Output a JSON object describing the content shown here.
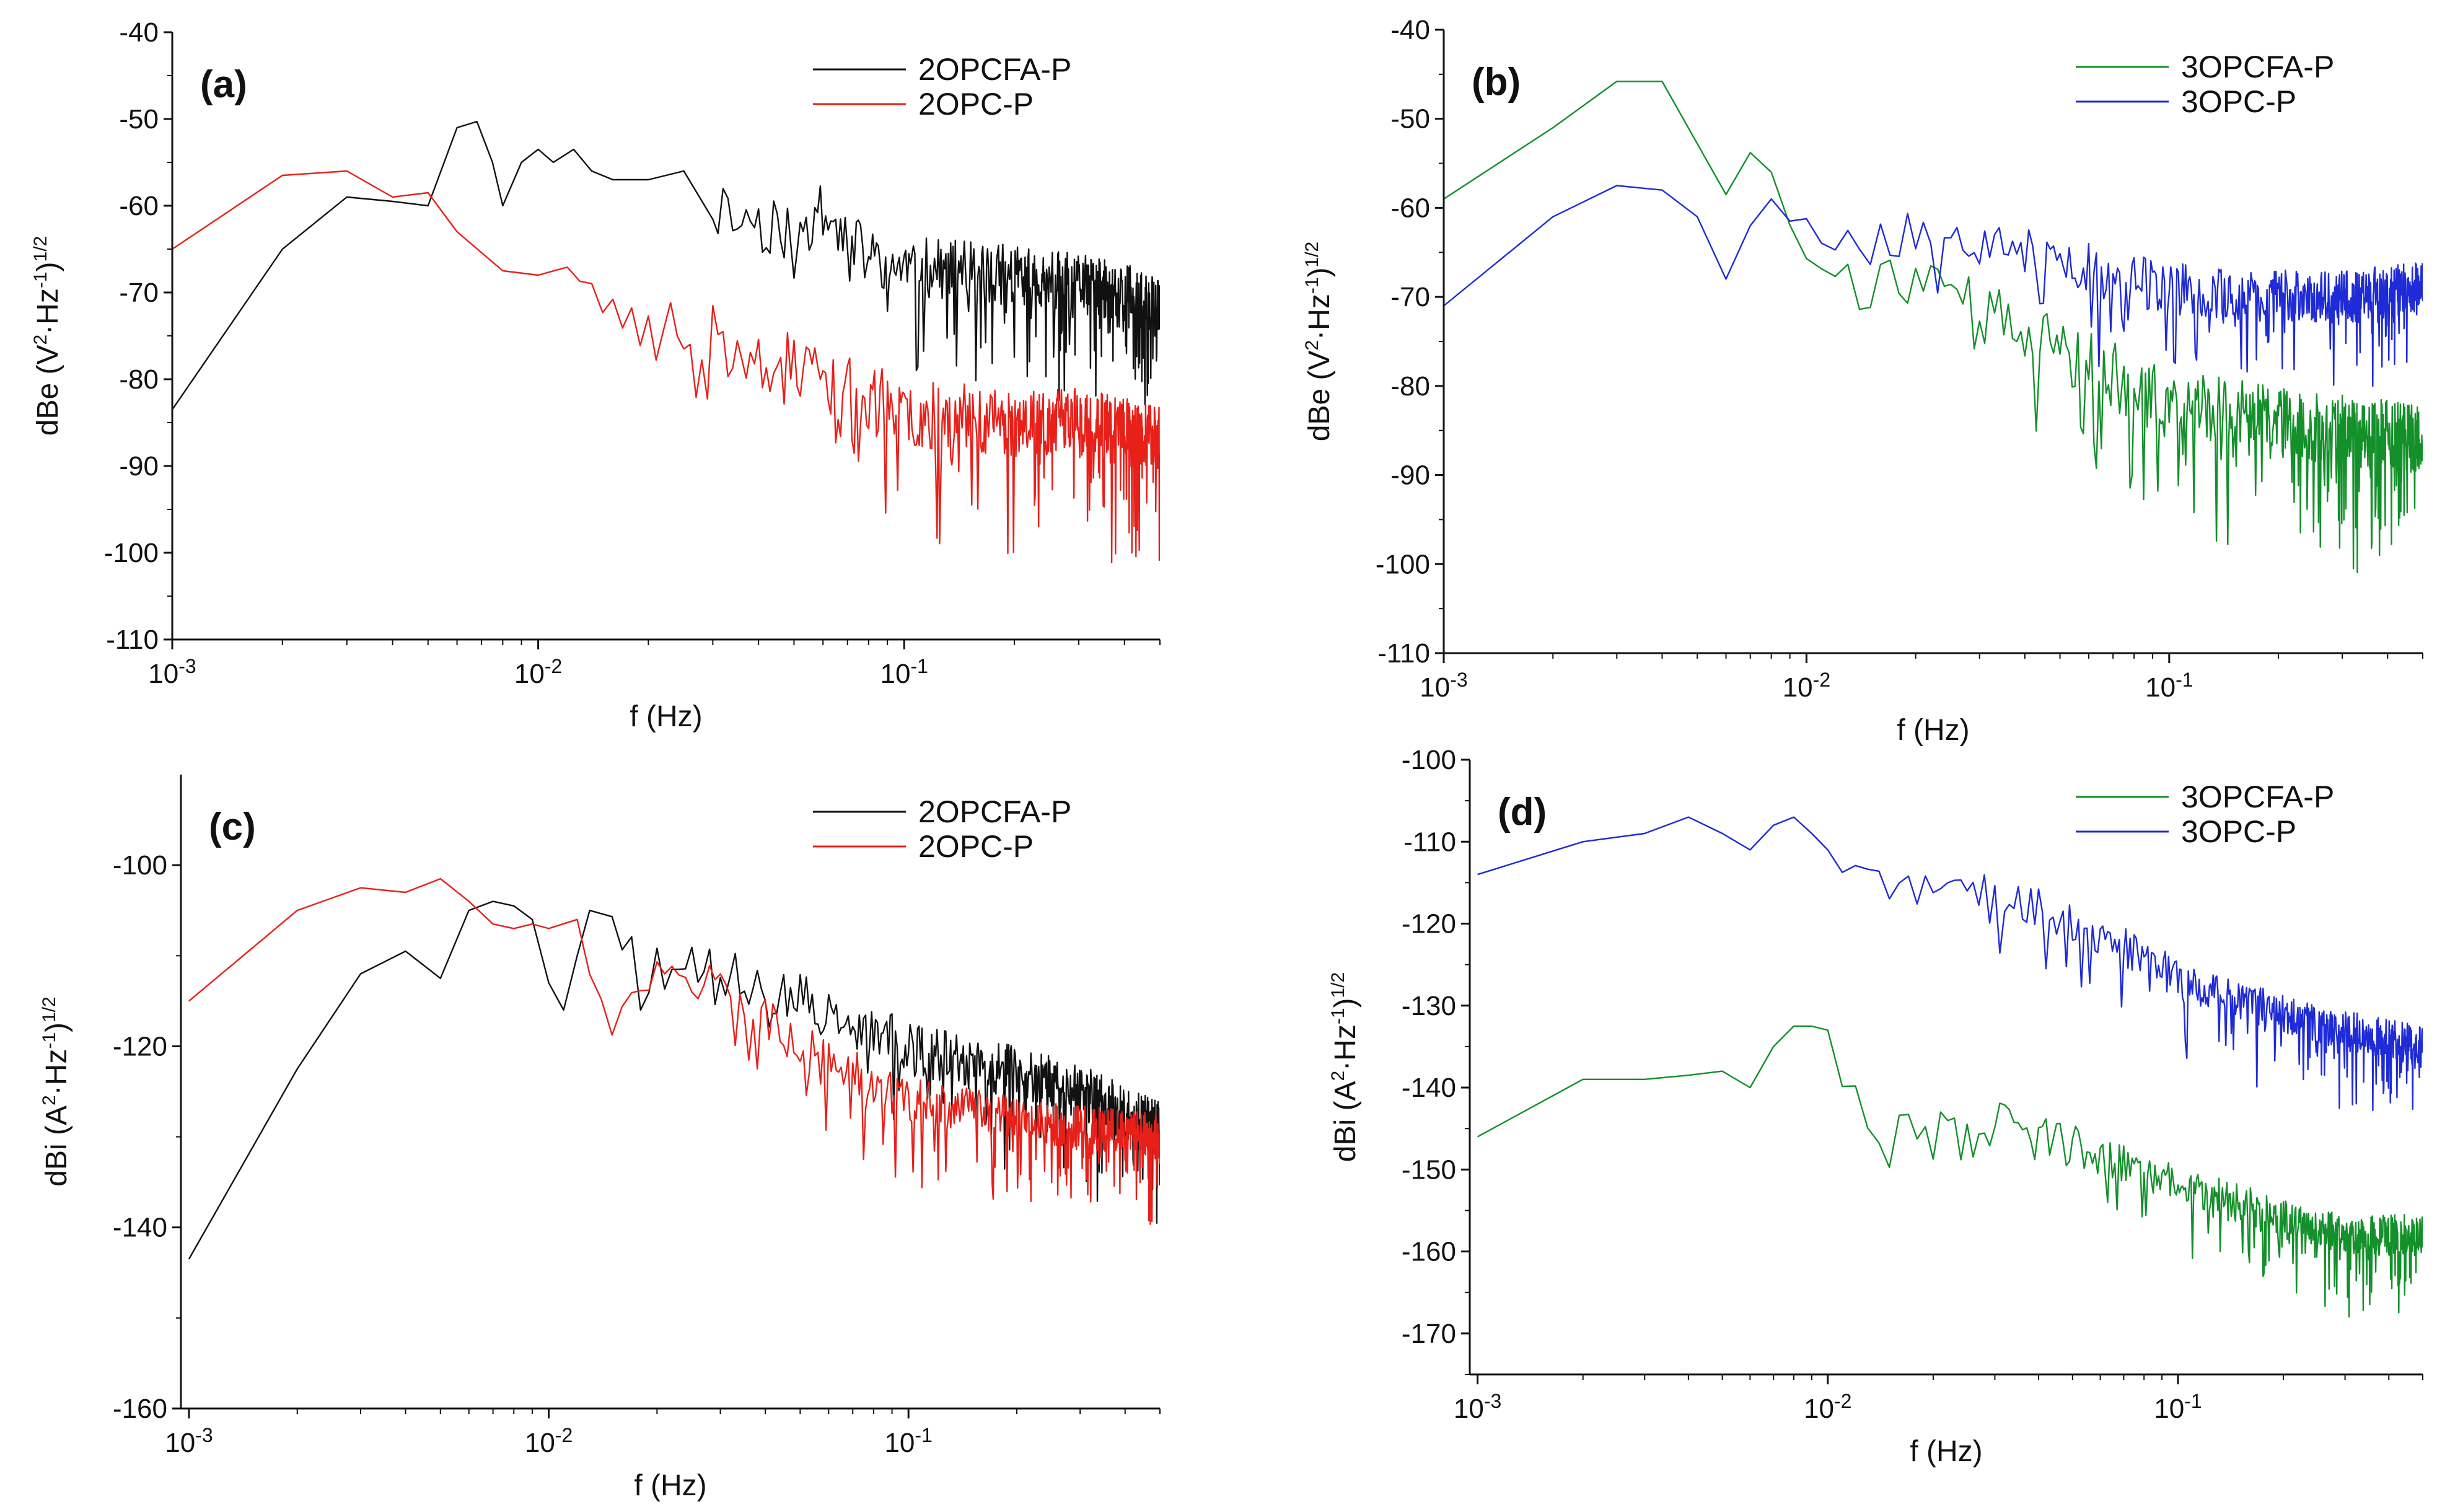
{
  "figure": {
    "panels": [
      {
        "tag": "(a)",
        "xlabel": "f (Hz)",
        "ylabel_main": "dBe (V",
        "ylabel_sup1": "2",
        "ylabel_mid": "·Hz",
        "ylabel_sup2": "-1",
        "ylabel_end": ")",
        "ylabel_sup3": "1/2",
        "legend": [
          "2OPCFA-P",
          "2OPC-P"
        ]
      },
      {
        "tag": "(b)",
        "xlabel": "f (Hz)",
        "ylabel_main": "dBe (V",
        "ylabel_sup1": "2",
        "ylabel_mid": "·Hz",
        "ylabel_sup2": "-1",
        "ylabel_end": ")",
        "ylabel_sup3": "1/2",
        "legend": [
          "3OPCFA-P",
          "3OPC-P"
        ]
      },
      {
        "tag": "(c)",
        "xlabel": "f (Hz)",
        "ylabel_main": "dBi (A",
        "ylabel_sup1": "2",
        "ylabel_mid": "·Hz",
        "ylabel_sup2": "-1",
        "ylabel_end": ")",
        "ylabel_sup3": "1/2",
        "legend": [
          "2OPCFA-P",
          "2OPC-P"
        ]
      },
      {
        "tag": "(d)",
        "xlabel": "f (Hz)",
        "ylabel_main": "dBi (A",
        "ylabel_sup1": "2",
        "ylabel_mid": "·Hz",
        "ylabel_sup2": "-1",
        "ylabel_end": ")",
        "ylabel_sup3": "1/2",
        "legend": [
          "3OPCFA-P",
          "3OPC-P"
        ]
      }
    ]
  },
  "chart_data": [
    {
      "type": "line",
      "title": "(a)",
      "xlabel": "f (Hz)",
      "ylabel": "dBe (V2·Hz-1)1/2",
      "xscale": "log",
      "xlim": [
        0.001,
        0.5
      ],
      "ylim": [
        -110,
        -40
      ],
      "yticks": [
        -40,
        -50,
        -60,
        -70,
        -80,
        -90,
        -100,
        -110
      ],
      "xtick_labels": [
        "10-3",
        "10-2",
        "10-1"
      ],
      "legend_position": "top-right",
      "series": [
        {
          "name": "2OPCFA-P",
          "color": "#111111",
          "noisy_from": 0.03,
          "noise_amp": 7,
          "seed": 11,
          "points": [
            [
              0.001,
              -83.5
            ],
            [
              0.002,
              -65
            ],
            [
              0.003,
              -59
            ],
            [
              0.004,
              -59.5
            ],
            [
              0.005,
              -60
            ],
            [
              0.006,
              -51
            ],
            [
              0.0068,
              -50.3
            ],
            [
              0.0075,
              -55
            ],
            [
              0.008,
              -60
            ],
            [
              0.009,
              -55
            ],
            [
              0.01,
              -53.5
            ],
            [
              0.011,
              -55
            ],
            [
              0.0125,
              -53.5
            ],
            [
              0.014,
              -56
            ],
            [
              0.016,
              -57
            ],
            [
              0.02,
              -57
            ],
            [
              0.025,
              -56
            ],
            [
              0.03,
              -60
            ],
            [
              0.04,
              -62
            ],
            [
              0.05,
              -63
            ],
            [
              0.06,
              -61
            ],
            [
              0.08,
              -66
            ],
            [
              0.1,
              -67
            ],
            [
              0.2,
              -68
            ],
            [
              0.3,
              -69
            ],
            [
              0.4,
              -70
            ],
            [
              0.5,
              -72
            ]
          ]
        },
        {
          "name": "2OPC-P",
          "color": "#e8201a",
          "noisy_from": 0.012,
          "noise_amp": 8,
          "seed": 23,
          "points": [
            [
              0.001,
              -65
            ],
            [
              0.002,
              -56.5
            ],
            [
              0.003,
              -56
            ],
            [
              0.004,
              -59
            ],
            [
              0.005,
              -58.5
            ],
            [
              0.006,
              -63
            ],
            [
              0.008,
              -67.5
            ],
            [
              0.01,
              -68
            ],
            [
              0.012,
              -66
            ],
            [
              0.015,
              -74
            ],
            [
              0.02,
              -74
            ],
            [
              0.03,
              -75
            ],
            [
              0.04,
              -77
            ],
            [
              0.06,
              -80
            ],
            [
              0.08,
              -82
            ],
            [
              0.1,
              -84
            ],
            [
              0.2,
              -85
            ],
            [
              0.3,
              -85
            ],
            [
              0.4,
              -86
            ],
            [
              0.5,
              -87
            ]
          ]
        }
      ]
    },
    {
      "type": "line",
      "title": "(b)",
      "xlabel": "f (Hz)",
      "ylabel": "dBe (V2·Hz-1)1/2",
      "xscale": "log",
      "xlim": [
        0.001,
        0.5
      ],
      "ylim": [
        -110,
        -40
      ],
      "yticks": [
        -40,
        -50,
        -60,
        -70,
        -80,
        -90,
        -100,
        -110
      ],
      "xtick_labels": [
        "10-3",
        "10-2",
        "10-1"
      ],
      "legend_position": "top-right",
      "series": [
        {
          "name": "3OPCFA-P",
          "color": "#13902a",
          "noisy_from": 0.009,
          "noise_amp": 8,
          "seed": 37,
          "points": [
            [
              0.001,
              -59
            ],
            [
              0.002,
              -51
            ],
            [
              0.003,
              -45.8
            ],
            [
              0.004,
              -45.8
            ],
            [
              0.006,
              -58.5
            ],
            [
              0.007,
              -53.8
            ],
            [
              0.008,
              -56
            ],
            [
              0.009,
              -63
            ],
            [
              0.01,
              -62
            ],
            [
              0.012,
              -68
            ],
            [
              0.015,
              -68
            ],
            [
              0.02,
              -70
            ],
            [
              0.03,
              -72
            ],
            [
              0.05,
              -76
            ],
            [
              0.08,
              -80
            ],
            [
              0.1,
              -82
            ],
            [
              0.2,
              -84
            ],
            [
              0.3,
              -85
            ],
            [
              0.5,
              -86
            ]
          ]
        },
        {
          "name": "3OPC-P",
          "color": "#1f2bd6",
          "noisy_from": 0.009,
          "noise_amp": 6,
          "seed": 53,
          "points": [
            [
              0.001,
              -71
            ],
            [
              0.002,
              -61
            ],
            [
              0.003,
              -57.5
            ],
            [
              0.004,
              -58
            ],
            [
              0.005,
              -61
            ],
            [
              0.006,
              -68
            ],
            [
              0.007,
              -62
            ],
            [
              0.008,
              -59
            ],
            [
              0.009,
              -59
            ],
            [
              0.01,
              -62
            ],
            [
              0.015,
              -64
            ],
            [
              0.02,
              -63
            ],
            [
              0.03,
              -64
            ],
            [
              0.05,
              -66
            ],
            [
              0.08,
              -68
            ],
            [
              0.1,
              -69
            ],
            [
              0.2,
              -70
            ],
            [
              0.3,
              -70
            ],
            [
              0.5,
              -69
            ]
          ]
        }
      ]
    },
    {
      "type": "line",
      "title": "(c)",
      "xlabel": "f (Hz)",
      "ylabel": "dBi (A2·Hz-1)1/2",
      "xscale": "log",
      "xlim": [
        0.00095,
        0.5
      ],
      "ylim": [
        -160,
        -90
      ],
      "yticks": [
        -100,
        -120,
        -140,
        -160
      ],
      "xtick_labels": [
        "10-3",
        "10-2",
        "10-1"
      ],
      "legend_position": "top-right",
      "series": [
        {
          "name": "2OPCFA-P",
          "color": "#111111",
          "noisy_from": 0.015,
          "noise_amp": 6,
          "seed": 71,
          "points": [
            [
              0.001,
              -143.5
            ],
            [
              0.002,
              -122.5
            ],
            [
              0.003,
              -112
            ],
            [
              0.004,
              -109.5
            ],
            [
              0.005,
              -112.5
            ],
            [
              0.006,
              -105
            ],
            [
              0.007,
              -104
            ],
            [
              0.008,
              -104.5
            ],
            [
              0.009,
              -106
            ],
            [
              0.01,
              -113
            ],
            [
              0.011,
              -116
            ],
            [
              0.012,
              -110
            ],
            [
              0.013,
              -105
            ],
            [
              0.015,
              -107
            ],
            [
              0.02,
              -112
            ],
            [
              0.03,
              -112
            ],
            [
              0.05,
              -115
            ],
            [
              0.08,
              -118
            ],
            [
              0.1,
              -120
            ],
            [
              0.2,
              -123
            ],
            [
              0.3,
              -125
            ],
            [
              0.5,
              -129
            ]
          ]
        },
        {
          "name": "2OPC-P",
          "color": "#e8201a",
          "noisy_from": 0.013,
          "noise_amp": 5,
          "seed": 97,
          "points": [
            [
              0.001,
              -115
            ],
            [
              0.002,
              -105
            ],
            [
              0.003,
              -102.5
            ],
            [
              0.004,
              -103
            ],
            [
              0.005,
              -101.5
            ],
            [
              0.006,
              -104
            ],
            [
              0.007,
              -106.5
            ],
            [
              0.008,
              -107
            ],
            [
              0.009,
              -106.5
            ],
            [
              0.01,
              -107
            ],
            [
              0.012,
              -106
            ],
            [
              0.015,
              -117
            ],
            [
              0.02,
              -111
            ],
            [
              0.03,
              -113
            ],
            [
              0.05,
              -120
            ],
            [
              0.08,
              -124
            ],
            [
              0.1,
              -126
            ],
            [
              0.2,
              -128
            ],
            [
              0.3,
              -129
            ],
            [
              0.5,
              -130
            ]
          ]
        }
      ]
    },
    {
      "type": "line",
      "title": "(d)",
      "xlabel": "f (Hz)",
      "ylabel": "dBi (A2·Hz-1)1/2",
      "xscale": "log",
      "xlim": [
        0.00095,
        0.5
      ],
      "ylim": [
        -175,
        -100
      ],
      "yticks": [
        -100,
        -110,
        -120,
        -130,
        -140,
        -150,
        -160,
        -170
      ],
      "xtick_labels": [
        "10-3",
        "10-2",
        "10-1"
      ],
      "legend_position": "top-right",
      "series": [
        {
          "name": "3OPCFA-P",
          "color": "#13902a",
          "noisy_from": 0.011,
          "noise_amp": 5,
          "seed": 113,
          "points": [
            [
              0.001,
              -146
            ],
            [
              0.002,
              -139
            ],
            [
              0.003,
              -139
            ],
            [
              0.004,
              -138.5
            ],
            [
              0.005,
              -138
            ],
            [
              0.006,
              -140
            ],
            [
              0.007,
              -135
            ],
            [
              0.008,
              -132.5
            ],
            [
              0.009,
              -132.5
            ],
            [
              0.01,
              -133
            ],
            [
              0.011,
              -140
            ],
            [
              0.013,
              -143
            ],
            [
              0.015,
              -147
            ],
            [
              0.02,
              -142
            ],
            [
              0.03,
              -144
            ],
            [
              0.05,
              -147
            ],
            [
              0.08,
              -150
            ],
            [
              0.1,
              -152
            ],
            [
              0.2,
              -156
            ],
            [
              0.3,
              -158
            ],
            [
              0.5,
              -158
            ]
          ]
        },
        {
          "name": "3OPC-P",
          "color": "#1f2bd6",
          "noisy_from": 0.011,
          "noise_amp": 5,
          "seed": 131,
          "points": [
            [
              0.001,
              -114
            ],
            [
              0.002,
              -110
            ],
            [
              0.003,
              -109
            ],
            [
              0.004,
              -107
            ],
            [
              0.005,
              -109
            ],
            [
              0.006,
              -111
            ],
            [
              0.007,
              -108
            ],
            [
              0.008,
              -107
            ],
            [
              0.009,
              -109
            ],
            [
              0.01,
              -111
            ],
            [
              0.012,
              -113
            ],
            [
              0.015,
              -115
            ],
            [
              0.02,
              -114
            ],
            [
              0.03,
              -116
            ],
            [
              0.05,
              -120
            ],
            [
              0.08,
              -124
            ],
            [
              0.1,
              -127
            ],
            [
              0.2,
              -131
            ],
            [
              0.3,
              -133
            ],
            [
              0.5,
              -135
            ]
          ]
        }
      ]
    }
  ]
}
